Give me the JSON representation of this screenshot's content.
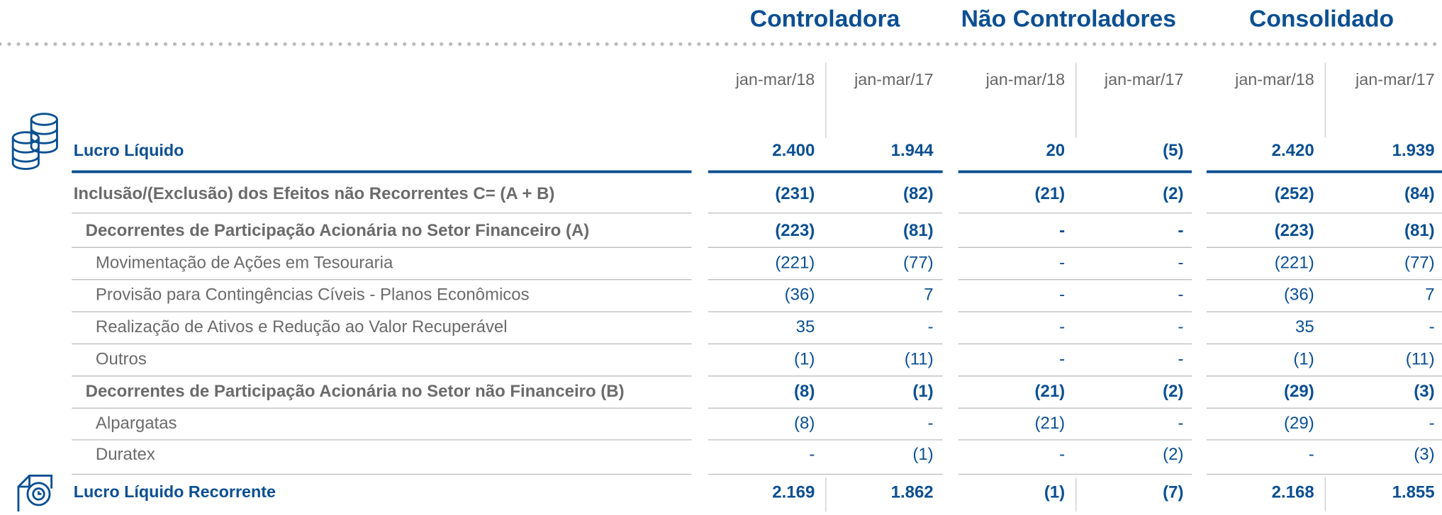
{
  "header": {
    "groups": [
      "Controladora",
      "Não Controladores",
      "Consolidado"
    ],
    "periods": [
      "jan-mar/18",
      "jan-mar/17",
      "jan-mar/18",
      "jan-mar/17",
      "jan-mar/18",
      "jan-mar/17"
    ]
  },
  "table": {
    "rows": [
      {
        "label": "Lucro Líquido",
        "values": [
          "2.400",
          "1.944",
          "20",
          "(5)",
          "2.420",
          "1.939"
        ]
      },
      {
        "label": "Inclusão/(Exclusão) dos Efeitos não Recorrentes  C= (A + B)",
        "values": [
          "(231)",
          "(82)",
          "(21)",
          "(2)",
          "(252)",
          "(84)"
        ]
      },
      {
        "label": "Decorrentes de Participação Acionária no Setor Financeiro  (A)",
        "values": [
          "(223)",
          "(81)",
          "-",
          "-",
          "(223)",
          "(81)"
        ]
      },
      {
        "label": "Movimentação de Ações em Tesouraria",
        "values": [
          "(221)",
          "(77)",
          "-",
          "-",
          "(221)",
          "(77)"
        ]
      },
      {
        "label": "Provisão para Contingências Cíveis - Planos Econômicos",
        "values": [
          "(36)",
          "7",
          "-",
          "-",
          "(36)",
          "7"
        ]
      },
      {
        "label": "Realização de Ativos e Redução ao Valor Recuperável",
        "values": [
          "35",
          "-",
          "-",
          "-",
          "35",
          "-"
        ]
      },
      {
        "label": "Outros",
        "values": [
          "(1)",
          "(11)",
          "-",
          "-",
          "(1)",
          "(11)"
        ]
      },
      {
        "label": "Decorrentes de Participação Acionária no Setor não Financeiro  (B)",
        "values": [
          "(8)",
          "(1)",
          "(21)",
          "(2)",
          "(29)",
          "(3)"
        ]
      },
      {
        "label": "Alpargatas",
        "values": [
          "(8)",
          "-",
          "(21)",
          "-",
          "(29)",
          "-"
        ]
      },
      {
        "label": "Duratex",
        "values": [
          "-",
          "(1)",
          "-",
          "(2)",
          "-",
          "(3)"
        ]
      },
      {
        "label": "Lucro Líquido Recorrente",
        "values": [
          "2.169",
          "1.862",
          "(1)",
          "(7)",
          "2.168",
          "1.855"
        ]
      }
    ]
  }
}
